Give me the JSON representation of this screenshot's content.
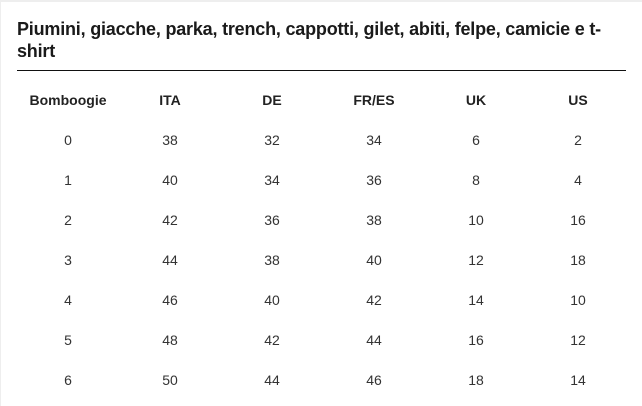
{
  "title": "Piumini, giacche, parka, trench, cappotti, gilet, abiti, felpe, camicie e t-shirt",
  "table": {
    "headers": [
      "Bomboogie",
      "ITA",
      "DE",
      "FR/ES",
      "UK",
      "US"
    ],
    "rows": [
      [
        "0",
        "38",
        "32",
        "34",
        "6",
        "2"
      ],
      [
        "1",
        "40",
        "34",
        "36",
        "8",
        "4"
      ],
      [
        "2",
        "42",
        "36",
        "38",
        "10",
        "16"
      ],
      [
        "3",
        "44",
        "38",
        "40",
        "12",
        "18"
      ],
      [
        "4",
        "46",
        "40",
        "42",
        "14",
        "10"
      ],
      [
        "5",
        "48",
        "42",
        "44",
        "16",
        "12"
      ],
      [
        "6",
        "50",
        "44",
        "46",
        "18",
        "14"
      ]
    ]
  }
}
